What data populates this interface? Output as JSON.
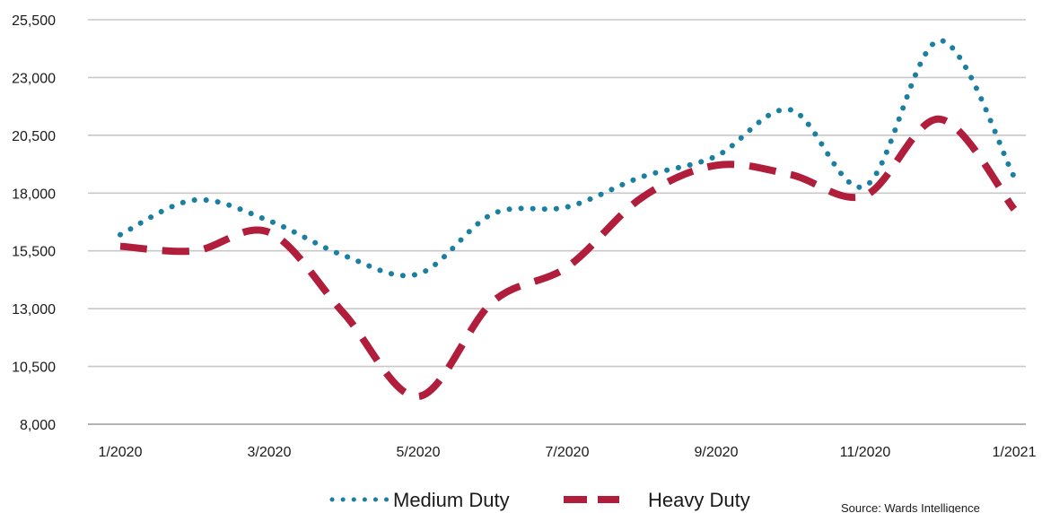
{
  "chart_data": {
    "type": "line",
    "x": [
      "1/2020",
      "2/2020",
      "3/2020",
      "4/2020",
      "5/2020",
      "6/2020",
      "7/2020",
      "8/2020",
      "9/2020",
      "10/2020",
      "11/2020",
      "12/2020",
      "1/2021"
    ],
    "x_tick_labels": [
      "1/2020",
      "3/2020",
      "5/2020",
      "7/2020",
      "9/2020",
      "11/2020",
      "1/2021"
    ],
    "ylim": [
      8000,
      25500
    ],
    "y_ticks": [
      8000,
      10500,
      13000,
      15500,
      18000,
      20500,
      23000,
      25500
    ],
    "y_tick_labels": [
      "8,000",
      "10,500",
      "13,000",
      "15,500",
      "18,000",
      "20,500",
      "23,000",
      "25,500"
    ],
    "grid": "horizontal",
    "legend_placement": "bottom",
    "series": [
      {
        "name": "Medium Duty",
        "style": "dotted",
        "color": "#1a7fa0",
        "values": [
          16200,
          17700,
          16800,
          15300,
          14500,
          17100,
          17400,
          18700,
          19600,
          21600,
          18300,
          24600,
          18700
        ]
      },
      {
        "name": "Heavy Duty",
        "style": "dashed",
        "color": "#b01e3c",
        "values": [
          15700,
          15500,
          16300,
          12800,
          9200,
          13300,
          14800,
          17800,
          19200,
          18800,
          17900,
          21200,
          17300
        ]
      }
    ],
    "source": "Source: Wards Intelligence"
  }
}
